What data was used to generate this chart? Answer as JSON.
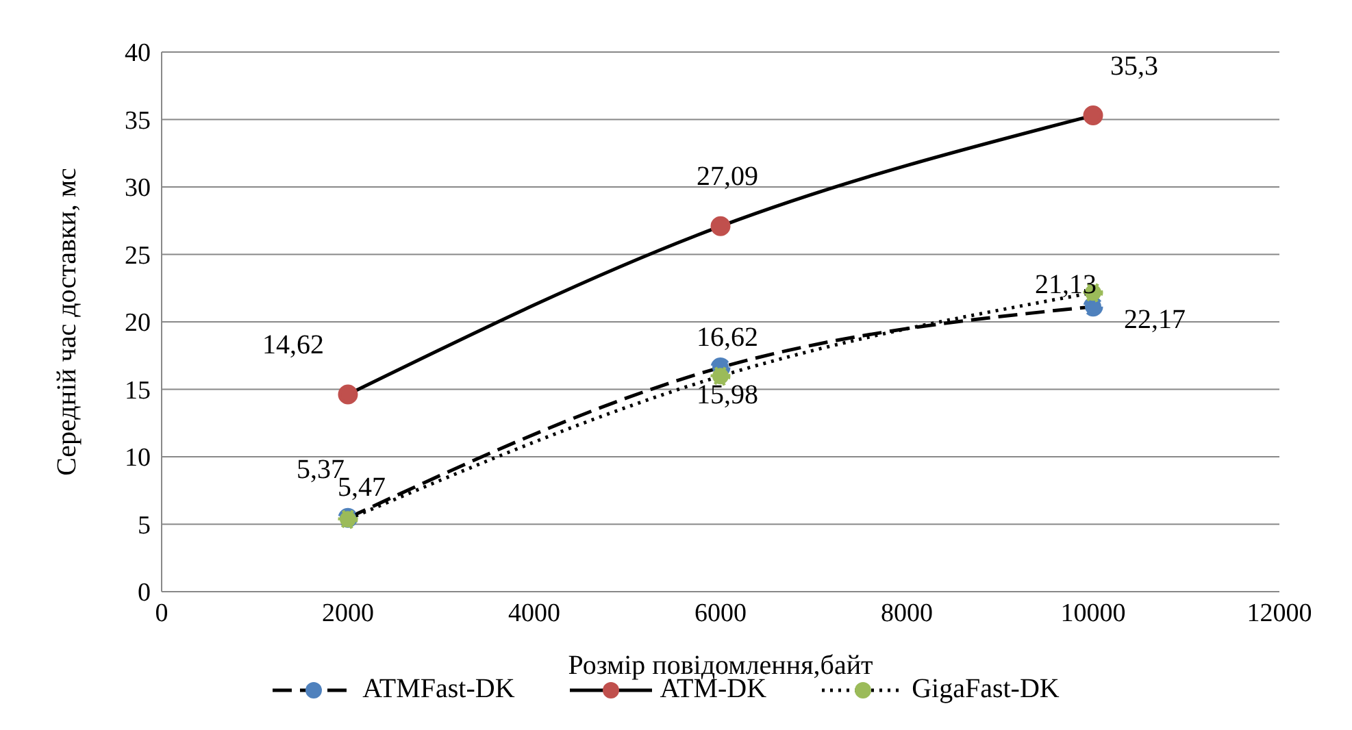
{
  "chart_data": {
    "type": "line",
    "xlabel": "Розмір повідомлення,байт",
    "ylabel": "Середній час доставки, мс",
    "x": [
      2000,
      6000,
      10000
    ],
    "series": [
      {
        "name": "ATMFast-DK",
        "color": "#4f81bd",
        "values": [
          5.47,
          16.62,
          21.13
        ],
        "value_labels": [
          "5,47",
          "16,62",
          "21,13"
        ],
        "line_style": "dashed"
      },
      {
        "name": "ATM-DK",
        "color": "#c0504d",
        "values": [
          14.62,
          27.09,
          35.3
        ],
        "value_labels": [
          "14,62",
          "27,09",
          "35,3"
        ],
        "line_style": "solid"
      },
      {
        "name": "GigaFast-DK",
        "color": "#9bbb59",
        "values": [
          5.37,
          15.98,
          22.17
        ],
        "value_labels": [
          "5,37",
          "15,98",
          "22,17"
        ],
        "line_style": "dotted"
      }
    ],
    "xlim": [
      0,
      12000
    ],
    "xticks": [
      0,
      2000,
      4000,
      6000,
      8000,
      10000,
      12000
    ],
    "ylim": [
      0,
      40
    ],
    "yticks": [
      0,
      5,
      10,
      15,
      20,
      25,
      30,
      35,
      40
    ],
    "grid": "y",
    "legend": "bottom",
    "marker": "circle"
  }
}
